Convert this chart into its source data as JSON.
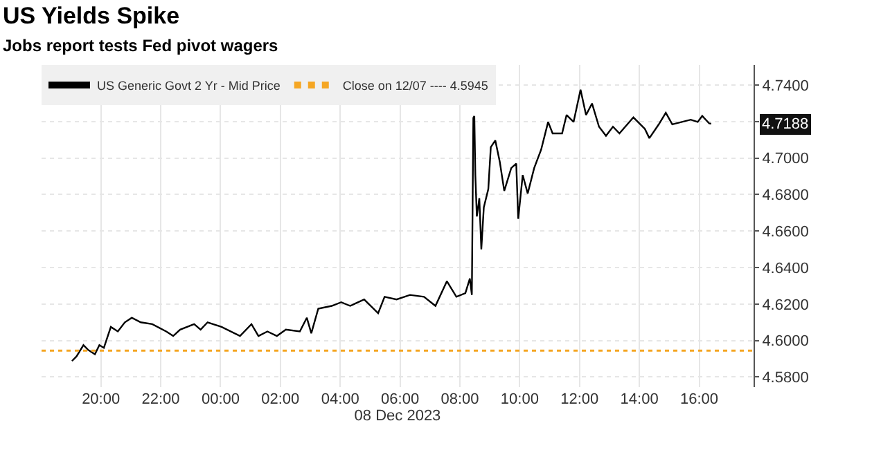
{
  "chart_data": {
    "type": "line",
    "title": "US Yields Spike",
    "subtitle": "Jobs report tests Fed pivot wagers",
    "xlabel": "08 Dec 2023",
    "xlim": [
      "2023-12-07T18:01",
      "2023-12-08T17:49"
    ],
    "ylim": [
      4.5745,
      4.751
    ],
    "xticks": [
      {
        "value": "2023-12-07T20:00",
        "label": "20:00"
      },
      {
        "value": "2023-12-07T22:00",
        "label": "22:00"
      },
      {
        "value": "2023-12-08T00:00",
        "label": "00:00"
      },
      {
        "value": "2023-12-08T02:00",
        "label": "02:00"
      },
      {
        "value": "2023-12-08T04:00",
        "label": "04:00"
      },
      {
        "value": "2023-12-08T06:00",
        "label": "06:00"
      },
      {
        "value": "2023-12-08T08:00",
        "label": "08:00"
      },
      {
        "value": "2023-12-08T10:00",
        "label": "10:00"
      },
      {
        "value": "2023-12-08T12:00",
        "label": "12:00"
      },
      {
        "value": "2023-12-08T14:00",
        "label": "14:00"
      },
      {
        "value": "2023-12-08T16:00",
        "label": "16:00"
      }
    ],
    "yticks": [
      {
        "value": 4.58,
        "label": "4.5800"
      },
      {
        "value": 4.6,
        "label": "4.6000"
      },
      {
        "value": 4.62,
        "label": "4.6200"
      },
      {
        "value": 4.64,
        "label": "4.6400"
      },
      {
        "value": 4.66,
        "label": "4.6600"
      },
      {
        "value": 4.68,
        "label": "4.6800"
      },
      {
        "value": 4.7,
        "label": "4.7000"
      },
      {
        "value": 4.72,
        "label": null
      },
      {
        "value": 4.74,
        "label": "4.7400"
      }
    ],
    "grid": true,
    "legend": "top left",
    "marker": "none",
    "line_style": "solid",
    "series": [
      {
        "name": "US Generic Govt 2 Yr - Mid Price",
        "color": "#000000",
        "x": [
          "2023-12-07T19:02",
          "2023-12-07T19:11",
          "2023-12-07T19:25",
          "2023-12-07T19:34",
          "2023-12-07T19:48",
          "2023-12-07T19:57",
          "2023-12-07T20:06",
          "2023-12-07T20:20",
          "2023-12-07T20:34",
          "2023-12-07T20:48",
          "2023-12-07T21:02",
          "2023-12-07T21:20",
          "2023-12-07T21:43",
          "2023-12-07T22:11",
          "2023-12-07T22:25",
          "2023-12-07T22:39",
          "2023-12-07T23:07",
          "2023-12-07T23:20",
          "2023-12-07T23:34",
          "2023-12-08T00:02",
          "2023-12-08T00:39",
          "2023-12-08T01:02",
          "2023-12-08T01:16",
          "2023-12-08T01:34",
          "2023-12-08T01:53",
          "2023-12-08T02:11",
          "2023-12-08T02:39",
          "2023-12-08T02:53",
          "2023-12-08T03:02",
          "2023-12-08T03:16",
          "2023-12-08T03:43",
          "2023-12-08T04:02",
          "2023-12-08T04:20",
          "2023-12-08T04:48",
          "2023-12-08T05:16",
          "2023-12-08T05:29",
          "2023-12-08T05:53",
          "2023-12-08T06:20",
          "2023-12-08T06:48",
          "2023-12-08T07:11",
          "2023-12-08T07:34",
          "2023-12-08T07:53",
          "2023-12-08T08:11",
          "2023-12-08T08:20",
          "2023-12-08T08:24",
          "2023-12-08T08:27",
          "2023-12-08T08:29",
          "2023-12-08T08:31",
          "2023-12-08T08:34",
          "2023-12-08T08:39",
          "2023-12-08T08:43",
          "2023-12-08T08:48",
          "2023-12-08T08:57",
          "2023-12-08T09:02",
          "2023-12-08T09:11",
          "2023-12-08T09:20",
          "2023-12-08T09:29",
          "2023-12-08T09:43",
          "2023-12-08T09:53",
          "2023-12-08T09:57",
          "2023-12-08T10:06",
          "2023-12-08T10:16",
          "2023-12-08T10:29",
          "2023-12-08T10:43",
          "2023-12-08T10:57",
          "2023-12-08T11:06",
          "2023-12-08T11:25",
          "2023-12-08T11:34",
          "2023-12-08T11:48",
          "2023-12-08T12:02",
          "2023-12-08T12:13",
          "2023-12-08T12:25",
          "2023-12-08T12:39",
          "2023-12-08T12:53",
          "2023-12-08T13:07",
          "2023-12-08T13:20",
          "2023-12-08T13:48",
          "2023-12-08T14:11",
          "2023-12-08T14:20",
          "2023-12-08T14:39",
          "2023-12-08T14:53",
          "2023-12-08T15:06",
          "2023-12-08T15:43",
          "2023-12-08T15:57",
          "2023-12-08T16:06",
          "2023-12-08T16:20",
          "2023-12-08T16:24"
        ],
        "values": [
          4.5888,
          4.5913,
          4.5975,
          4.595,
          4.5925,
          4.5975,
          4.596,
          4.6075,
          4.605,
          4.61,
          4.6125,
          4.61,
          4.609,
          4.605,
          4.6025,
          4.606,
          4.609,
          4.606,
          4.61,
          4.6075,
          4.6025,
          4.609,
          4.6025,
          4.605,
          4.6025,
          4.606,
          4.605,
          4.6125,
          4.604,
          4.6175,
          4.619,
          4.621,
          4.619,
          4.6225,
          4.615,
          4.624,
          4.6225,
          4.625,
          4.624,
          4.619,
          4.6325,
          4.624,
          4.626,
          4.634,
          4.625,
          4.722,
          4.723,
          4.6907,
          4.668,
          4.678,
          4.65,
          4.673,
          4.683,
          4.706,
          4.7097,
          4.698,
          4.682,
          4.6945,
          4.697,
          4.6667,
          4.6907,
          4.6806,
          4.6945,
          4.7046,
          4.7198,
          4.7135,
          4.7135,
          4.7236,
          4.7198,
          4.7375,
          4.7236,
          4.7299,
          4.7172,
          4.7122,
          4.7172,
          4.7135,
          4.7223,
          4.716,
          4.7109,
          4.7185,
          4.7248,
          4.7185,
          4.721,
          4.7198,
          4.7231,
          4.719,
          4.7188
        ]
      }
    ],
    "ref_lines": [
      {
        "axis": "y",
        "value": 4.5945,
        "label": "Close on 12/07 ---- 4.5945",
        "color": "#f5a623",
        "line_style": "dotted"
      }
    ],
    "annotations": [
      "4.7188"
    ]
  }
}
